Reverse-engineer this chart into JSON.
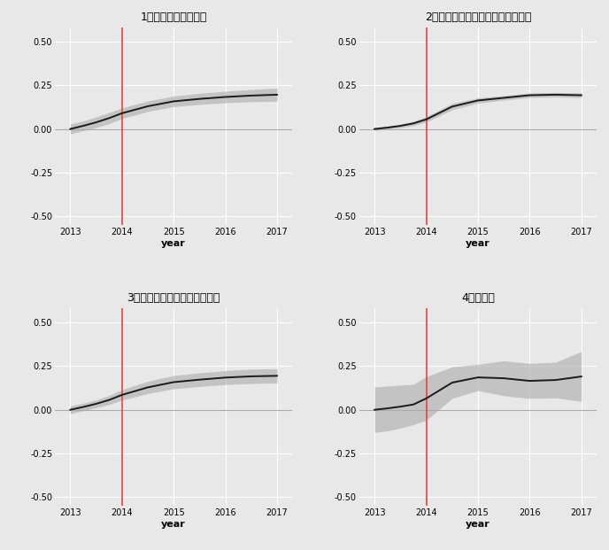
{
  "titles": [
    "1．すべてのサンプル",
    "2．法定雇用率を達成していた企業",
    "3．求人充足率が低い都道府県",
    "4．製造業"
  ],
  "xlabel": "year",
  "ylim": [
    -0.55,
    0.58
  ],
  "yticks": [
    -0.5,
    -0.25,
    0.0,
    0.25,
    0.5
  ],
  "xticks": [
    2013,
    2014,
    2015,
    2016,
    2017
  ],
  "vline_x": 2014,
  "bg_color": "#e8e8e8",
  "grid_color": "#ffffff",
  "line_color": "#1a1a1a",
  "ci_color": "#b0b0b0",
  "vline_color": "#e84040",
  "zero_line_color": "#aaaaaa",
  "panels": [
    {
      "x": [
        2013.0,
        2013.25,
        2013.5,
        2013.75,
        2014.0,
        2014.5,
        2015.0,
        2015.5,
        2016.0,
        2016.5,
        2017.0
      ],
      "y": [
        0.0,
        0.018,
        0.038,
        0.062,
        0.09,
        0.13,
        0.158,
        0.172,
        0.183,
        0.191,
        0.196
      ],
      "y_lo": [
        -0.028,
        -0.01,
        0.008,
        0.03,
        0.06,
        0.1,
        0.128,
        0.14,
        0.15,
        0.156,
        0.158
      ],
      "y_hi": [
        0.028,
        0.046,
        0.068,
        0.094,
        0.12,
        0.16,
        0.188,
        0.204,
        0.216,
        0.226,
        0.234
      ]
    },
    {
      "x": [
        2013.0,
        2013.25,
        2013.5,
        2013.75,
        2014.0,
        2014.5,
        2015.0,
        2015.5,
        2016.0,
        2016.5,
        2017.0
      ],
      "y": [
        0.0,
        0.008,
        0.018,
        0.032,
        0.055,
        0.128,
        0.163,
        0.178,
        0.193,
        0.196,
        0.193
      ],
      "y_lo": [
        -0.008,
        0.0,
        0.008,
        0.02,
        0.04,
        0.11,
        0.148,
        0.165,
        0.18,
        0.183,
        0.18
      ],
      "y_hi": [
        0.008,
        0.016,
        0.028,
        0.044,
        0.07,
        0.146,
        0.178,
        0.191,
        0.206,
        0.209,
        0.206
      ]
    },
    {
      "x": [
        2013.0,
        2013.25,
        2013.5,
        2013.75,
        2014.0,
        2014.5,
        2015.0,
        2015.5,
        2016.0,
        2016.5,
        2017.0
      ],
      "y": [
        0.0,
        0.016,
        0.034,
        0.056,
        0.085,
        0.128,
        0.158,
        0.172,
        0.184,
        0.191,
        0.194
      ],
      "y_lo": [
        -0.022,
        -0.006,
        0.012,
        0.03,
        0.055,
        0.093,
        0.12,
        0.133,
        0.144,
        0.15,
        0.153
      ],
      "y_hi": [
        0.022,
        0.038,
        0.056,
        0.082,
        0.115,
        0.163,
        0.196,
        0.211,
        0.224,
        0.232,
        0.235
      ]
    },
    {
      "x": [
        2013.0,
        2013.25,
        2013.5,
        2013.75,
        2014.0,
        2014.5,
        2015.0,
        2015.5,
        2016.0,
        2016.5,
        2017.0
      ],
      "y": [
        0.0,
        0.008,
        0.018,
        0.03,
        0.065,
        0.155,
        0.185,
        0.18,
        0.165,
        0.17,
        0.19
      ],
      "y_lo": [
        -0.13,
        -0.12,
        -0.105,
        -0.085,
        -0.06,
        0.065,
        0.11,
        0.08,
        0.065,
        0.068,
        0.048
      ],
      "y_hi": [
        0.13,
        0.136,
        0.141,
        0.145,
        0.19,
        0.245,
        0.26,
        0.28,
        0.265,
        0.272,
        0.332
      ]
    }
  ]
}
